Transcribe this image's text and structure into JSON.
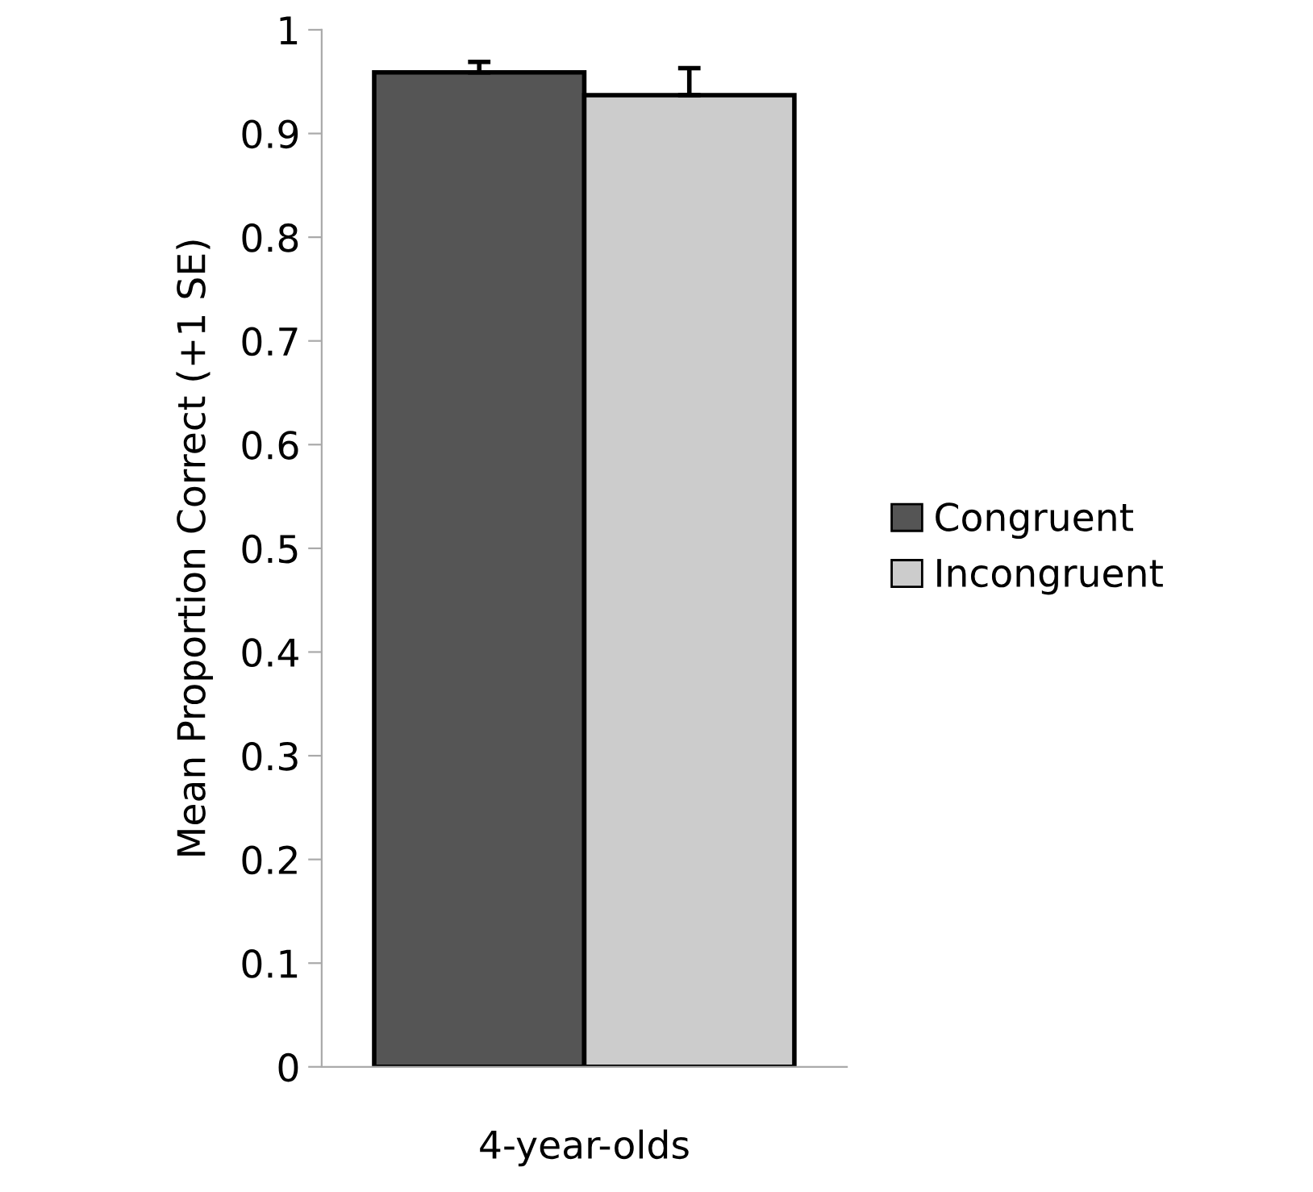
{
  "chart_data": {
    "type": "bar",
    "ylabel": "Mean Proportion Correct (+1 SE)",
    "categories": [
      "4-year-olds"
    ],
    "series": [
      {
        "name": "Congruent",
        "color": "#555555",
        "values": [
          0.959
        ],
        "errors": [
          [
            0.959,
            0.969
          ]
        ]
      },
      {
        "name": "Incongruent",
        "color": "#cccccc",
        "values": [
          0.937
        ],
        "errors": [
          [
            0.937,
            0.963
          ]
        ]
      }
    ],
    "ylim": [
      0,
      1
    ],
    "yticks": [
      0,
      0.1,
      0.2,
      0.3,
      0.4,
      0.5,
      0.6,
      0.7,
      0.8,
      0.9,
      1
    ],
    "grid": false,
    "legend": "right"
  }
}
